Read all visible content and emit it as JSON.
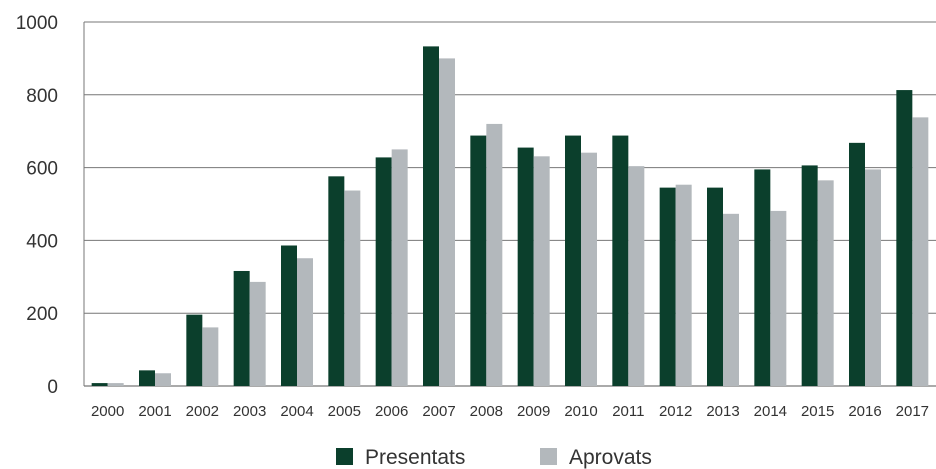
{
  "chart_data": {
    "type": "bar",
    "categories": [
      "2000",
      "2001",
      "2002",
      "2003",
      "2004",
      "2005",
      "2006",
      "2007",
      "2008",
      "2009",
      "2010",
      "2011",
      "2012",
      "2013",
      "2014",
      "2015",
      "2016",
      "2017"
    ],
    "series": [
      {
        "name": "Presentats",
        "color": "#0b3f2c",
        "values": [
          8,
          43,
          196,
          316,
          386,
          576,
          628,
          933,
          688,
          655,
          688,
          688,
          545,
          545,
          595,
          606,
          668,
          813
        ]
      },
      {
        "name": "Aprovats",
        "color": "#b3b8bc",
        "values": [
          8,
          35,
          161,
          286,
          351,
          537,
          650,
          900,
          720,
          631,
          641,
          604,
          553,
          473,
          481,
          565,
          595,
          738
        ]
      }
    ],
    "title": "",
    "xlabel": "",
    "ylabel": "",
    "ylim": [
      0,
      1000
    ],
    "yticks": [
      0,
      200,
      400,
      600,
      800,
      1000
    ],
    "grid": "horizontal",
    "legend_position": "bottom-center"
  }
}
